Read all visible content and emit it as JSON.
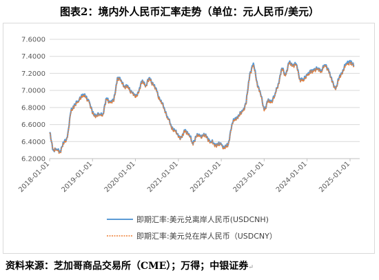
{
  "figure": {
    "title": "图表2：境内外人民币汇率走势（单位：元人民币/美元）",
    "source": "资料来源：芝加哥商品交易所（CME）；万得；中银证券"
  },
  "colors": {
    "cnh": "#5b9bd5",
    "cny": "#ed7d31",
    "grid": "#d9d9d9",
    "axis": "#bfbfbf"
  },
  "chart_data": {
    "type": "line",
    "title": "",
    "xlabel": "",
    "ylabel": "",
    "ylim": [
      6.2,
      7.6
    ],
    "yticks": [
      "6.2000",
      "6.4000",
      "6.6000",
      "6.8000",
      "7.0000",
      "7.2000",
      "7.4000",
      "7.6000"
    ],
    "xticks": [
      "2018-01-01",
      "2019-01-01",
      "2020-01-01",
      "2021-01-01",
      "2022-01-01",
      "2023-01-01",
      "2024-01-01",
      "2025-01-01"
    ],
    "grid": "horizontal",
    "legend_position": "bottom",
    "x": [
      "2018-01-01",
      "2018-02-01",
      "2018-03-01",
      "2018-04-01",
      "2018-05-01",
      "2018-06-01",
      "2018-07-01",
      "2018-08-01",
      "2018-09-01",
      "2018-10-01",
      "2018-11-01",
      "2018-12-01",
      "2019-01-01",
      "2019-02-01",
      "2019-03-01",
      "2019-04-01",
      "2019-05-01",
      "2019-06-01",
      "2019-07-01",
      "2019-08-01",
      "2019-09-01",
      "2019-10-01",
      "2019-11-01",
      "2019-12-01",
      "2020-01-01",
      "2020-02-01",
      "2020-03-01",
      "2020-04-01",
      "2020-05-01",
      "2020-06-01",
      "2020-07-01",
      "2020-08-01",
      "2020-09-01",
      "2020-10-01",
      "2020-11-01",
      "2020-12-01",
      "2021-01-01",
      "2021-02-01",
      "2021-03-01",
      "2021-04-01",
      "2021-05-01",
      "2021-06-01",
      "2021-07-01",
      "2021-08-01",
      "2021-09-01",
      "2021-10-01",
      "2021-11-01",
      "2021-12-01",
      "2022-01-01",
      "2022-02-01",
      "2022-03-01",
      "2022-04-01",
      "2022-05-01",
      "2022-06-01",
      "2022-07-01",
      "2022-08-01",
      "2022-09-01",
      "2022-10-01",
      "2022-11-01",
      "2022-12-01",
      "2023-01-01",
      "2023-02-01",
      "2023-03-01",
      "2023-04-01",
      "2023-05-01",
      "2023-06-01",
      "2023-07-01",
      "2023-08-01",
      "2023-09-01",
      "2023-10-01",
      "2023-11-01",
      "2023-12-01",
      "2024-01-01",
      "2024-02-01",
      "2024-03-01",
      "2024-04-01",
      "2024-05-01",
      "2024-06-01",
      "2024-07-01",
      "2024-08-01",
      "2024-09-01",
      "2024-10-01",
      "2024-11-01",
      "2024-12-01",
      "2025-01-01",
      "2025-02-01"
    ],
    "series": [
      {
        "name": "即期汇率:美元兑离岸人民币(USDCNH)",
        "values": [
          6.51,
          6.3,
          6.31,
          6.29,
          6.38,
          6.45,
          6.75,
          6.84,
          6.87,
          6.95,
          6.93,
          6.88,
          6.73,
          6.71,
          6.72,
          6.73,
          6.91,
          6.86,
          6.88,
          7.15,
          7.12,
          7.05,
          7.04,
          6.98,
          6.92,
          7.0,
          7.12,
          7.06,
          7.15,
          7.07,
          6.99,
          6.88,
          6.8,
          6.69,
          6.58,
          6.53,
          6.46,
          6.45,
          6.54,
          6.49,
          6.38,
          6.46,
          6.47,
          6.47,
          6.46,
          6.4,
          6.38,
          6.36,
          6.37,
          6.32,
          6.37,
          6.6,
          6.68,
          6.7,
          6.76,
          6.85,
          7.2,
          7.32,
          7.1,
          6.96,
          6.77,
          6.87,
          6.87,
          6.94,
          7.08,
          7.26,
          7.18,
          7.32,
          7.3,
          7.31,
          7.14,
          7.12,
          7.19,
          7.21,
          7.25,
          7.25,
          7.24,
          7.3,
          7.25,
          7.1,
          7.02,
          7.15,
          7.24,
          7.32,
          7.35,
          7.28
        ]
      },
      {
        "name": "即期汇率:美元兑在岸人民币（USDCNY）",
        "values": [
          6.5,
          6.31,
          6.3,
          6.28,
          6.37,
          6.44,
          6.74,
          6.83,
          6.86,
          6.94,
          6.92,
          6.87,
          6.72,
          6.7,
          6.71,
          6.72,
          6.9,
          6.85,
          6.87,
          7.14,
          7.11,
          7.04,
          7.03,
          6.97,
          6.91,
          6.99,
          7.11,
          7.05,
          7.14,
          7.06,
          6.98,
          6.87,
          6.79,
          6.68,
          6.57,
          6.52,
          6.45,
          6.45,
          6.53,
          6.48,
          6.37,
          6.45,
          6.46,
          6.46,
          6.45,
          6.39,
          6.37,
          6.35,
          6.36,
          6.31,
          6.36,
          6.59,
          6.67,
          6.69,
          6.75,
          6.84,
          7.19,
          7.3,
          7.09,
          6.95,
          6.76,
          6.86,
          6.86,
          6.93,
          7.07,
          7.25,
          7.17,
          7.31,
          7.29,
          7.3,
          7.13,
          7.11,
          7.18,
          7.2,
          7.24,
          7.24,
          7.23,
          7.29,
          7.24,
          7.09,
          7.01,
          7.14,
          7.23,
          7.3,
          7.33,
          7.27
        ]
      }
    ]
  }
}
